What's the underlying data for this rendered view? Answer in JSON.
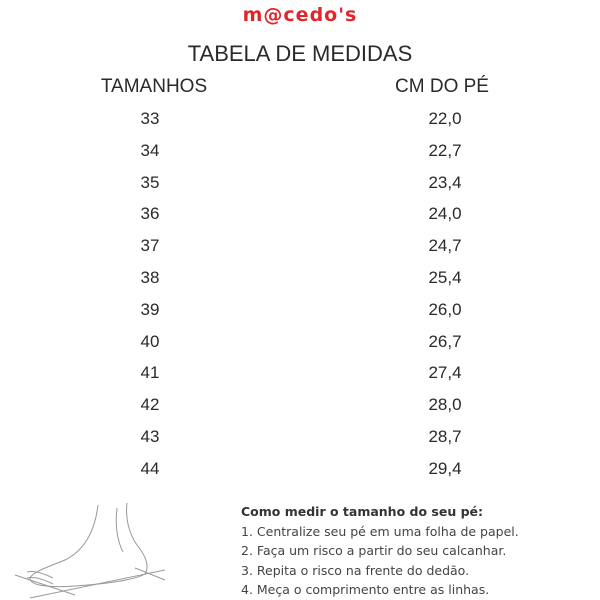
{
  "brand": {
    "logo": "m@cedo's",
    "color": "#e0262b"
  },
  "title": "TABELA DE MEDIDAS",
  "table": {
    "headers": [
      "TAMANHOS",
      "CM DO PÉ"
    ],
    "rows": [
      [
        "33",
        "22,0"
      ],
      [
        "34",
        "22,7"
      ],
      [
        "35",
        "23,4"
      ],
      [
        "36",
        "24,0"
      ],
      [
        "37",
        "24,7"
      ],
      [
        "38",
        "25,4"
      ],
      [
        "39",
        "26,0"
      ],
      [
        "40",
        "26,7"
      ],
      [
        "41",
        "27,4"
      ],
      [
        "42",
        "28,0"
      ],
      [
        "43",
        "28,7"
      ],
      [
        "44",
        "29,4"
      ]
    ]
  },
  "instructions": {
    "heading": "Como medir o tamanho do seu pé:",
    "steps": [
      "1. Centralize seu pé em uma folha de papel.",
      "2. Faça um risco a partir do seu calcanhar.",
      "3. Repita o risco na frente do dedão.",
      "4. Meça o comprimento entre as linhas."
    ]
  },
  "illustration": {
    "icon": "foot-illustration"
  }
}
